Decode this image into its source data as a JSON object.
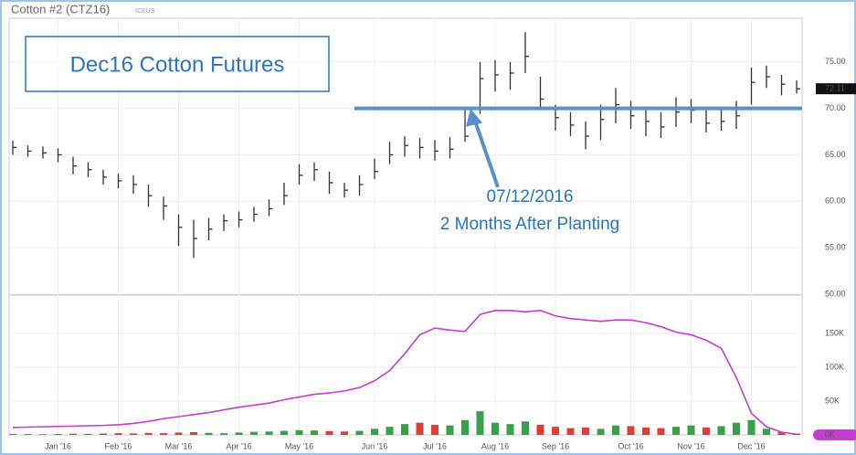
{
  "chart_data": {
    "type": "ohlc",
    "title": "Cotton #2 (CTZ16)",
    "exchange": "ICEUS",
    "annotation_box": "Dec16 Cotton Futures",
    "annotation_date": "07/12/2016",
    "annotation_note": "2 Months After Planting",
    "level": 70,
    "level_color": "#5b8fc9",
    "annotation_color": "#2e75b6",
    "bar_color": "#333333",
    "categories": [
      null,
      null,
      null,
      "Jan '16",
      null,
      null,
      null,
      "Feb '16",
      null,
      null,
      null,
      "Mar '16",
      null,
      null,
      null,
      "Apr '16",
      null,
      null,
      null,
      "May '16",
      null,
      null,
      null,
      null,
      "Jun '16",
      null,
      null,
      null,
      "Jul '16",
      null,
      null,
      null,
      "Aug '16",
      null,
      null,
      null,
      "Sep '16",
      null,
      null,
      null,
      null,
      "Oct '16",
      null,
      null,
      null,
      "Nov '16",
      null,
      null,
      null,
      "Dec '16",
      null,
      null,
      null
    ],
    "high": [
      66.5,
      66.0,
      65.9,
      65.7,
      64.8,
      64.2,
      63.4,
      63.0,
      62.8,
      61.8,
      60.5,
      58.6,
      58.0,
      58.2,
      58.6,
      58.9,
      59.4,
      60.2,
      62.0,
      64.0,
      64.2,
      63.2,
      62.0,
      62.8,
      64.6,
      66.4,
      67.0,
      66.8,
      66.6,
      66.9,
      70.0,
      75.0,
      75.2,
      75.0,
      78.2,
      73.4,
      70.4,
      69.6,
      68.6,
      70.4,
      72.2,
      70.8,
      70.2,
      69.6,
      71.2,
      71.0,
      69.8,
      70.0,
      70.8,
      74.4,
      74.6,
      73.6,
      73.0
    ],
    "low": [
      65.0,
      64.8,
      64.6,
      64.2,
      62.9,
      62.6,
      61.8,
      61.4,
      60.8,
      59.4,
      58.0,
      55.2,
      53.9,
      55.8,
      56.8,
      57.2,
      57.8,
      58.4,
      59.6,
      61.8,
      62.2,
      60.8,
      60.4,
      60.6,
      62.4,
      64.0,
      64.8,
      64.6,
      64.4,
      64.6,
      66.4,
      69.4,
      71.8,
      72.0,
      73.8,
      70.0,
      67.6,
      67.0,
      65.6,
      66.6,
      68.4,
      67.8,
      67.0,
      66.8,
      68.0,
      68.4,
      67.4,
      67.6,
      67.8,
      70.4,
      72.2,
      71.4,
      71.6
    ],
    "close": [
      65.8,
      65.4,
      65.2,
      65.0,
      63.8,
      63.4,
      62.6,
      62.2,
      61.8,
      60.6,
      59.5,
      57.2,
      56.0,
      57.0,
      57.9,
      58.0,
      58.6,
      59.2,
      60.6,
      62.8,
      63.4,
      62.0,
      61.2,
      61.8,
      63.2,
      65.0,
      66.0,
      65.8,
      65.4,
      65.6,
      67.0,
      73.2,
      73.6,
      73.8,
      75.6,
      71.0,
      69.0,
      68.2,
      67.0,
      68.8,
      70.4,
      69.2,
      68.6,
      68.0,
      69.6,
      69.8,
      68.4,
      68.6,
      69.2,
      72.8,
      73.4,
      72.6,
      72.11
    ],
    "last_price": 72.11,
    "ylim": [
      50,
      79.5
    ],
    "yticks": [
      {
        "value": 50,
        "label": "50.00"
      },
      {
        "value": 55,
        "label": "55.00"
      },
      {
        "value": 60,
        "label": "60.00"
      },
      {
        "value": 65,
        "label": "65.00"
      },
      {
        "value": 70,
        "label": "70.00"
      },
      {
        "value": 75,
        "label": "75.00"
      }
    ],
    "volume": {
      "values": [
        1500,
        1200,
        1000,
        1300,
        1800,
        1500,
        2000,
        2500,
        2200,
        3000,
        2500,
        3500,
        4000,
        3000,
        2500,
        3500,
        4500,
        5000,
        6000,
        7000,
        6500,
        5500,
        5000,
        6000,
        9000,
        12000,
        16000,
        18000,
        15000,
        14000,
        22000,
        35000,
        18000,
        16000,
        20000,
        15000,
        12000,
        10000,
        11000,
        9000,
        14000,
        13000,
        11000,
        10000,
        12000,
        14000,
        11000,
        13000,
        18000,
        22000,
        9000,
        4000,
        2000
      ],
      "up_color": "#3a9e4a",
      "down_color": "#d9403a"
    },
    "open_interest": {
      "color": "#c23fd0",
      "values": [
        11000,
        11500,
        12000,
        12500,
        13000,
        13500,
        14000,
        15000,
        17000,
        20000,
        24000,
        27000,
        30000,
        33000,
        37000,
        41000,
        44000,
        47000,
        52000,
        56000,
        60000,
        62000,
        65000,
        70000,
        80000,
        95000,
        120000,
        148000,
        158000,
        155000,
        153000,
        178000,
        184000,
        184000,
        182000,
        184000,
        176000,
        172000,
        170000,
        168000,
        170000,
        170000,
        166000,
        160000,
        152000,
        148000,
        140000,
        128000,
        85000,
        32000,
        12000,
        4000,
        1000
      ]
    },
    "y2lim": [
      0,
      204000
    ],
    "y2ticks": [
      {
        "value": 0,
        "label": "0K"
      },
      {
        "value": 50000,
        "label": "50K"
      },
      {
        "value": 100000,
        "label": "100K"
      },
      {
        "value": 150000,
        "label": "150K"
      }
    ],
    "grid": true
  }
}
